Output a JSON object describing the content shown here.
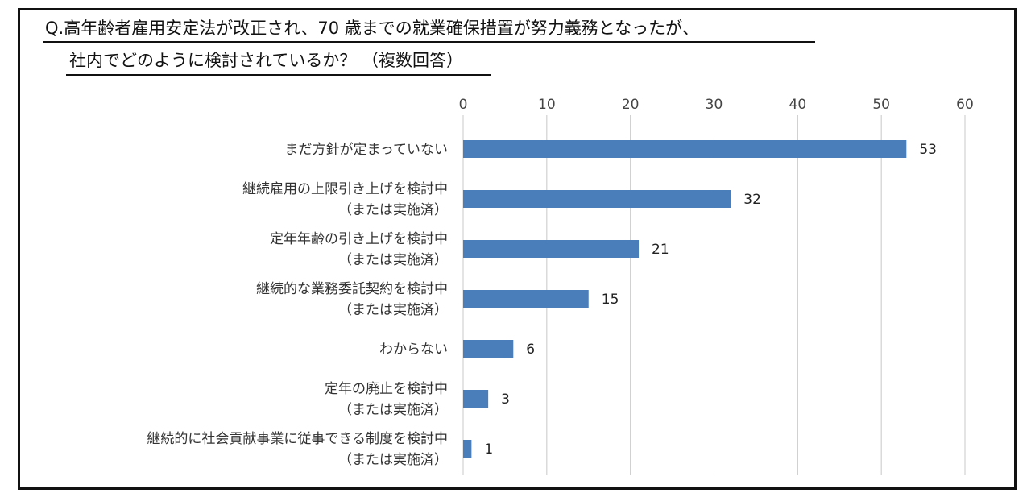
{
  "title": {
    "line1": "Q.高年齢者雇用安定法が改正され、70 歳までの就業確保措置が努力義務となったが、",
    "line2": "社内でどのように検討されているか？ （複数回答）"
  },
  "colors": {
    "bar": "#4A7EBB",
    "grid": "#c8c8c8",
    "frame": "#111111"
  },
  "chart_data": {
    "type": "bar",
    "orientation": "horizontal",
    "categories": [
      [
        "まだ方針が定まっていない"
      ],
      [
        "継続雇用の上限引き上げを検討中",
        "（または実施済）"
      ],
      [
        "定年年齢の引き上げを検討中",
        "（または実施済）"
      ],
      [
        "継続的な業務委託契約を検討中",
        "（または実施済）"
      ],
      [
        "わからない"
      ],
      [
        "定年の廃止を検討中",
        "（または実施済）"
      ],
      [
        "継続的に社会貢献事業に従事できる制度を検討中",
        "（または実施済）"
      ]
    ],
    "values": [
      53,
      32,
      21,
      15,
      6,
      3,
      1
    ],
    "xlim": [
      0,
      60
    ],
    "xticks": [
      "0",
      "10",
      "20",
      "30",
      "40",
      "50",
      "60"
    ],
    "axis_position": "top",
    "grid": true,
    "legend": "none"
  }
}
